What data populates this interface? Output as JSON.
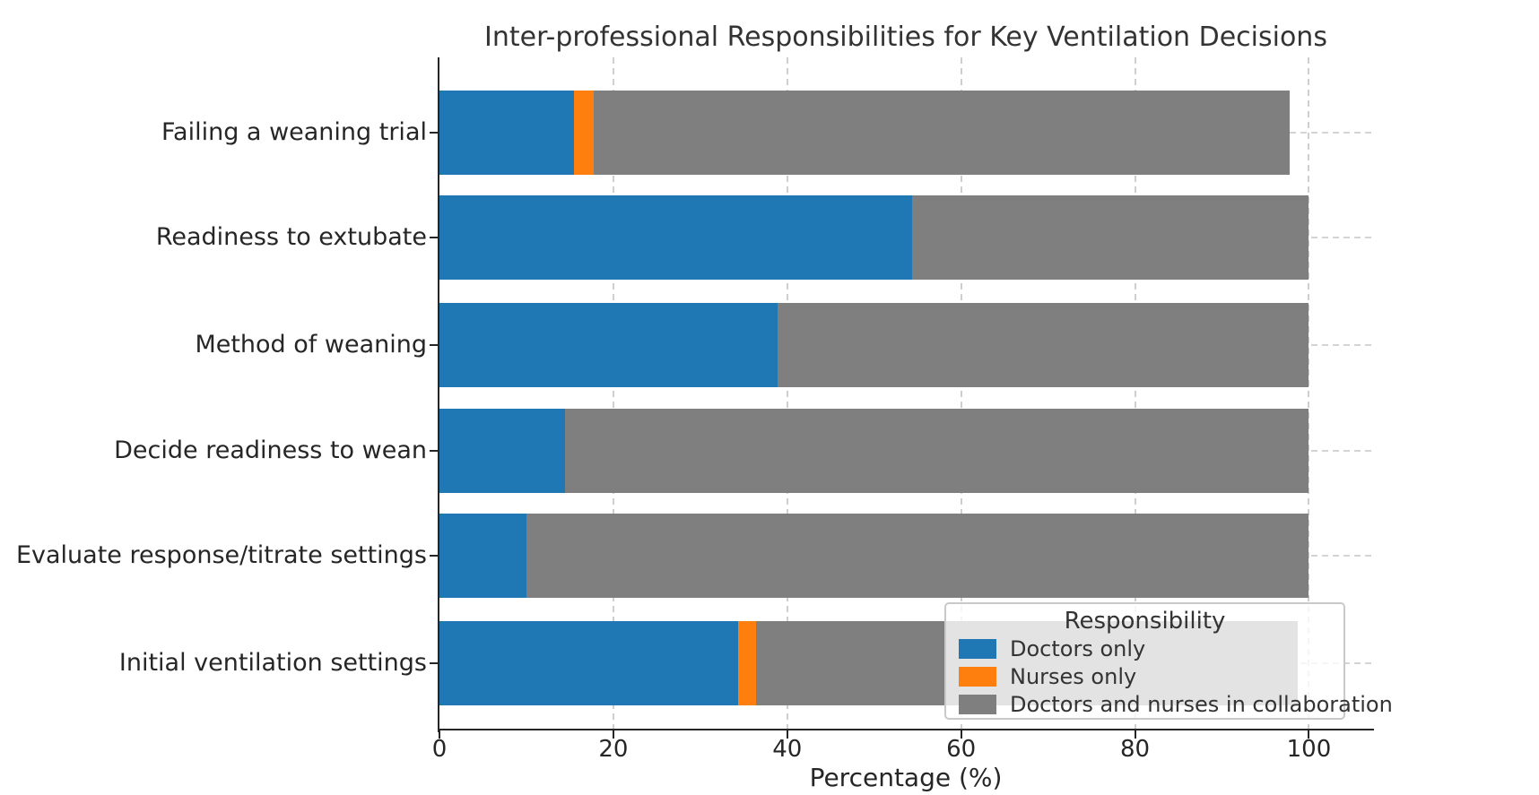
{
  "chart_data": {
    "type": "bar",
    "orientation": "horizontal",
    "stacked": true,
    "title": "Inter-professional Responsibilities for Key Ventilation Decisions",
    "xlabel": "Percentage (%)",
    "ylabel": "",
    "xlim": [
      0,
      107
    ],
    "x_ticks": [
      0,
      20,
      40,
      60,
      80,
      100
    ],
    "grid": "dashed",
    "legend_title": "Responsibility",
    "legend_position": "lower right",
    "categories_top_to_bottom": [
      "Failing a weaning trial",
      "Readiness to extubate",
      "Method of weaning",
      "Decide readiness to wean",
      "Evaluate response/titrate settings",
      "Initial ventilation settings"
    ],
    "series": [
      {
        "name": "Doctors only",
        "color": "#1f77b4",
        "values": [
          15.5,
          54.4,
          38.9,
          14.4,
          10.0,
          34.3
        ]
      },
      {
        "name": "Nurses only",
        "color": "#ff7f0e",
        "values": [
          2.2,
          0,
          0,
          0,
          0,
          2.1
        ]
      },
      {
        "name": "Doctors and nurses in collaboration",
        "color": "#7f7f7f",
        "values": [
          80.1,
          45.6,
          61.1,
          85.6,
          90.0,
          62.3
        ]
      }
    ],
    "bar_totals": [
      97.8,
      100,
      100,
      100,
      100,
      98.7
    ]
  },
  "colors": {
    "background": "#ffffff",
    "doctors_only": "#1f77b4",
    "nurses_only": "#ff7f0e",
    "collaboration": "#7f7f7f",
    "gridline": "#cfcfcf",
    "axis": "#262626",
    "text": "#333333"
  }
}
